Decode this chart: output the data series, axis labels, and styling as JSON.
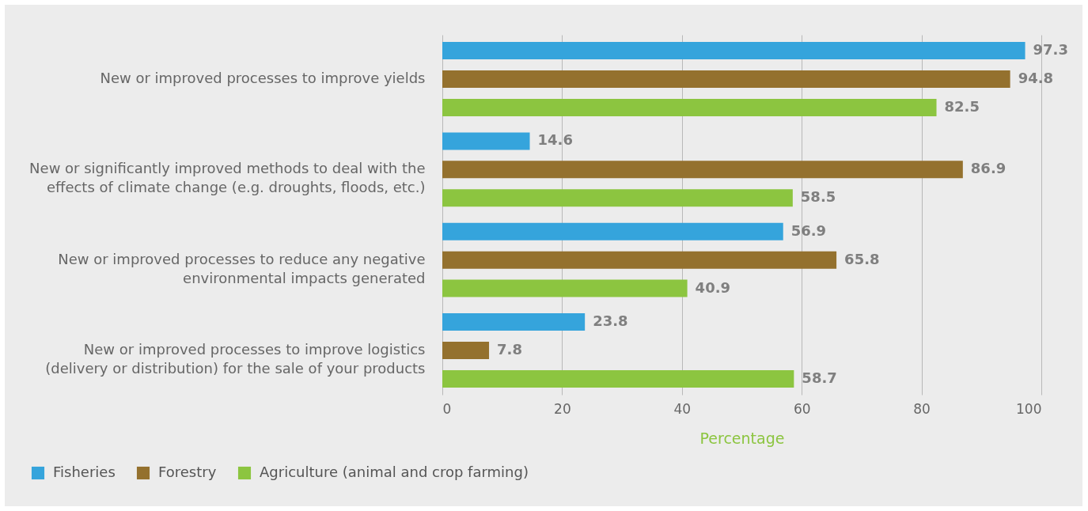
{
  "chart_data": {
    "type": "bar",
    "orientation": "horizontal",
    "xlabel": "Percentage",
    "categories": [
      "New or improved processes to improve yields",
      "New or significantly improved methods to deal with the effects of climate change (e.g. droughts, floods, etc.)",
      "New or improved processes to reduce any negative environmental impacts generated",
      "New or improved processes to improve logistics (delivery or distribution) for the sale of your products"
    ],
    "series": [
      {
        "name": "Fisheries",
        "color": "#35a4dc",
        "values": [
          97.3,
          14.6,
          56.9,
          23.8
        ]
      },
      {
        "name": "Forestry",
        "color": "#94712e",
        "values": [
          94.8,
          86.9,
          65.8,
          7.8
        ]
      },
      {
        "name": "Agriculture (animal and crop farming)",
        "color": "#8cc540",
        "values": [
          82.5,
          58.5,
          40.9,
          58.7
        ]
      }
    ],
    "xlim": [
      0,
      100
    ],
    "xticks": [
      0,
      20,
      40,
      60,
      80,
      100
    ],
    "grid": "x",
    "data_labels": true,
    "legend": "bottom left"
  }
}
